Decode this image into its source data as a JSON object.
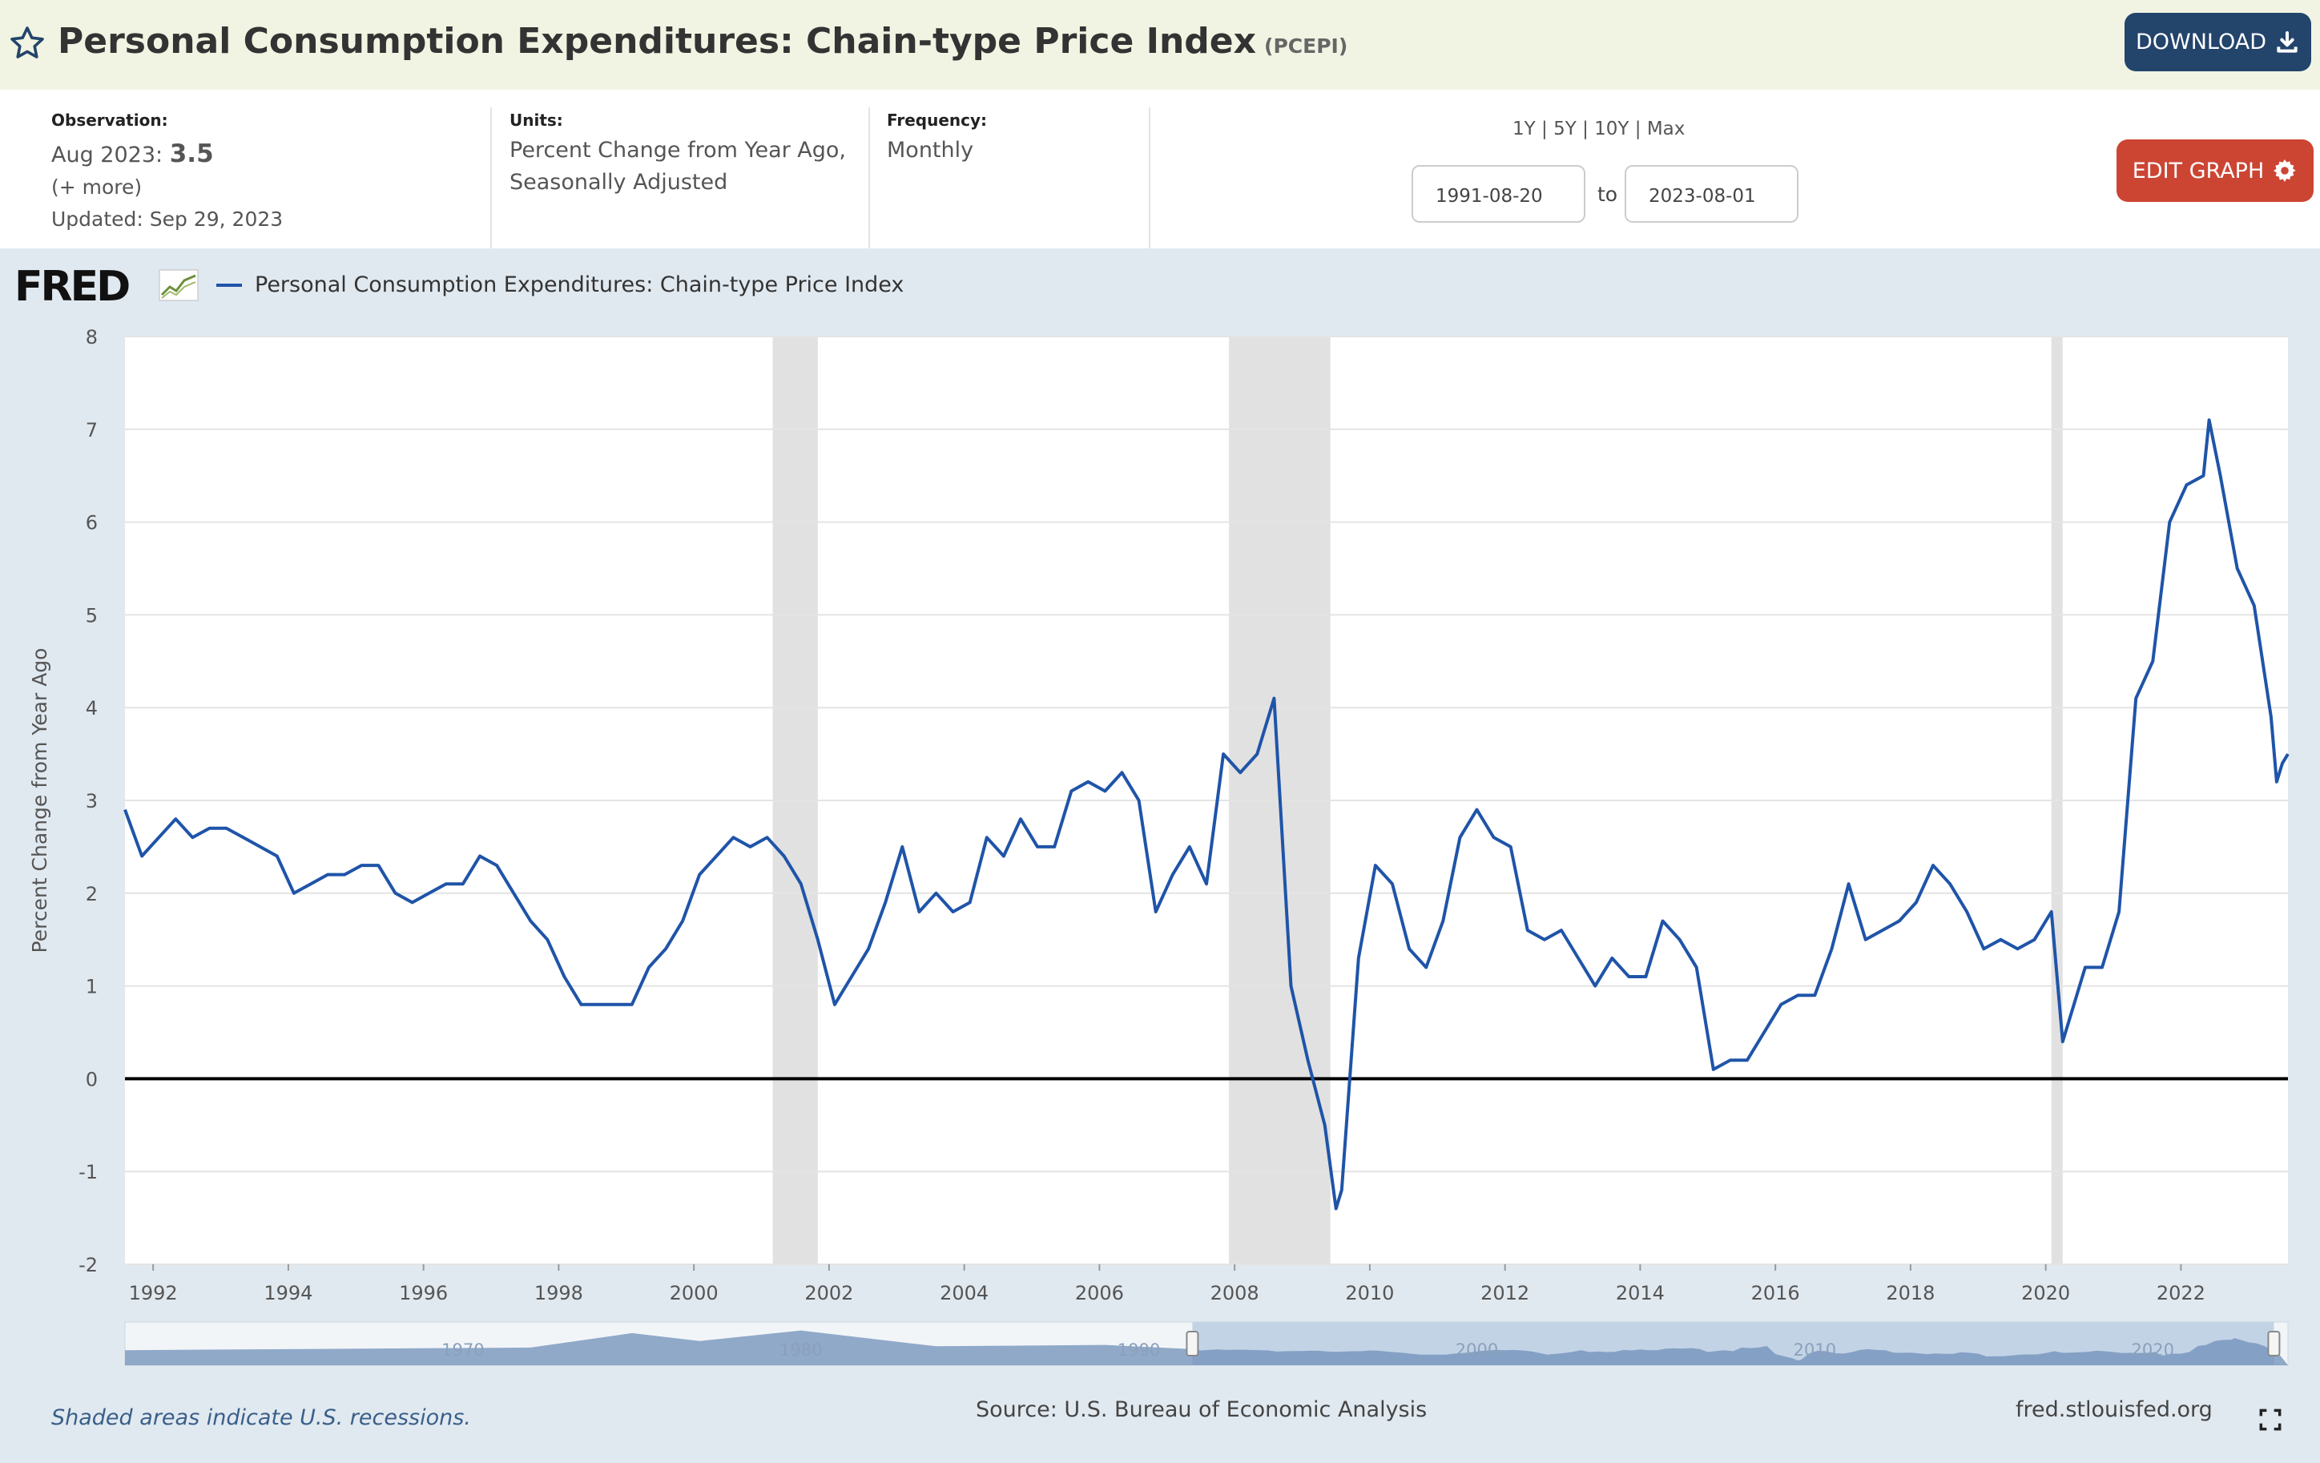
{
  "header": {
    "title": "Personal Consumption Expenditures: Chain-type Price Index",
    "series_id": "(PCEPI)",
    "download_label": "DOWNLOAD",
    "star_icon": "star-outline-icon"
  },
  "meta": {
    "observation_label": "Observation:",
    "observation_date": "Aug 2023:",
    "observation_value": "3.5",
    "more_link": "(+ more)",
    "updated": "Updated: Sep 29, 2023",
    "units_label": "Units:",
    "units_line1": "Percent Change from Year Ago,",
    "units_line2": "Seasonally Adjusted",
    "frequency_label": "Frequency:",
    "frequency_value": "Monthly"
  },
  "controls": {
    "range_1y": "1Y",
    "range_5y": "5Y",
    "range_10y": "10Y",
    "range_max": "Max",
    "separator": "|",
    "start_date": "1991-08-20",
    "to_label": "to",
    "end_date": "2023-08-01",
    "edit_label": "EDIT GRAPH"
  },
  "graph": {
    "logo_text": "FRED",
    "footer_note": "Shaded areas indicate U.S. recessions.",
    "source": "Source: U.S. Bureau of Economic Analysis",
    "site": "fred.stlouisfed.org"
  },
  "colors": {
    "line": "#1f54a8",
    "recession": "#e1e1e1",
    "title_bg": "#f1f4e2",
    "graph_bg": "#e1e9f0",
    "download_btn": "#23446b",
    "edit_btn": "#cc4533"
  },
  "chart_data": {
    "type": "line",
    "title": "",
    "ylabel": "Percent Change from Year Ago",
    "xlabel": "",
    "ylim": [
      -2,
      8
    ],
    "xlim": [
      "1991-08",
      "2023-08"
    ],
    "yticks": [
      "-2",
      "-1",
      "0",
      "1",
      "2",
      "3",
      "4",
      "5",
      "6",
      "7",
      "8"
    ],
    "xticks": [
      "1992",
      "1994",
      "1996",
      "1998",
      "2000",
      "2002",
      "2004",
      "2006",
      "2008",
      "2010",
      "2012",
      "2014",
      "2016",
      "2018",
      "2020",
      "2022"
    ],
    "grid": true,
    "zero_line": true,
    "legend": "top-left",
    "recessions": [
      [
        "2001-03",
        "2001-11"
      ],
      [
        "2007-12",
        "2009-06"
      ],
      [
        "2020-02",
        "2020-04"
      ]
    ],
    "navigator_labels": [
      "1970",
      "1980",
      "1990",
      "2000",
      "2010",
      "2020"
    ],
    "series": [
      {
        "name": "Personal Consumption Expenditures: Chain-type Price Index",
        "points": [
          [
            "1991-08",
            2.9
          ],
          [
            "1991-11",
            2.4
          ],
          [
            "1992-02",
            2.6
          ],
          [
            "1992-05",
            2.8
          ],
          [
            "1992-08",
            2.6
          ],
          [
            "1992-11",
            2.7
          ],
          [
            "1993-02",
            2.7
          ],
          [
            "1993-05",
            2.6
          ],
          [
            "1993-08",
            2.5
          ],
          [
            "1993-11",
            2.4
          ],
          [
            "1994-02",
            2.0
          ],
          [
            "1994-05",
            2.1
          ],
          [
            "1994-08",
            2.2
          ],
          [
            "1994-11",
            2.2
          ],
          [
            "1995-02",
            2.3
          ],
          [
            "1995-05",
            2.3
          ],
          [
            "1995-08",
            2.0
          ],
          [
            "1995-11",
            1.9
          ],
          [
            "1996-02",
            2.0
          ],
          [
            "1996-05",
            2.1
          ],
          [
            "1996-08",
            2.1
          ],
          [
            "1996-11",
            2.4
          ],
          [
            "1997-02",
            2.3
          ],
          [
            "1997-05",
            2.0
          ],
          [
            "1997-08",
            1.7
          ],
          [
            "1997-11",
            1.5
          ],
          [
            "1998-02",
            1.1
          ],
          [
            "1998-05",
            0.8
          ],
          [
            "1998-08",
            0.8
          ],
          [
            "1998-11",
            0.8
          ],
          [
            "1999-02",
            0.8
          ],
          [
            "1999-05",
            1.2
          ],
          [
            "1999-08",
            1.4
          ],
          [
            "1999-11",
            1.7
          ],
          [
            "2000-02",
            2.2
          ],
          [
            "2000-05",
            2.4
          ],
          [
            "2000-08",
            2.6
          ],
          [
            "2000-11",
            2.5
          ],
          [
            "2001-02",
            2.6
          ],
          [
            "2001-05",
            2.4
          ],
          [
            "2001-08",
            2.1
          ],
          [
            "2001-11",
            1.5
          ],
          [
            "2002-02",
            0.8
          ],
          [
            "2002-05",
            1.1
          ],
          [
            "2002-08",
            1.4
          ],
          [
            "2002-11",
            1.9
          ],
          [
            "2003-02",
            2.5
          ],
          [
            "2003-05",
            1.8
          ],
          [
            "2003-08",
            2.0
          ],
          [
            "2003-11",
            1.8
          ],
          [
            "2004-02",
            1.9
          ],
          [
            "2004-05",
            2.6
          ],
          [
            "2004-08",
            2.4
          ],
          [
            "2004-11",
            2.8
          ],
          [
            "2005-02",
            2.5
          ],
          [
            "2005-05",
            2.5
          ],
          [
            "2005-08",
            3.1
          ],
          [
            "2005-11",
            3.2
          ],
          [
            "2006-02",
            3.1
          ],
          [
            "2006-05",
            3.3
          ],
          [
            "2006-08",
            3.0
          ],
          [
            "2006-11",
            1.8
          ],
          [
            "2007-02",
            2.2
          ],
          [
            "2007-05",
            2.5
          ],
          [
            "2007-08",
            2.1
          ],
          [
            "2007-11",
            3.5
          ],
          [
            "2008-02",
            3.3
          ],
          [
            "2008-05",
            3.5
          ],
          [
            "2008-08",
            4.1
          ],
          [
            "2008-11",
            1.0
          ],
          [
            "2009-02",
            0.2
          ],
          [
            "2009-05",
            -0.5
          ],
          [
            "2009-07",
            -1.4
          ],
          [
            "2009-08",
            -1.2
          ],
          [
            "2009-11",
            1.3
          ],
          [
            "2010-02",
            2.3
          ],
          [
            "2010-05",
            2.1
          ],
          [
            "2010-08",
            1.4
          ],
          [
            "2010-11",
            1.2
          ],
          [
            "2011-02",
            1.7
          ],
          [
            "2011-05",
            2.6
          ],
          [
            "2011-08",
            2.9
          ],
          [
            "2011-11",
            2.6
          ],
          [
            "2012-02",
            2.5
          ],
          [
            "2012-05",
            1.6
          ],
          [
            "2012-08",
            1.5
          ],
          [
            "2012-11",
            1.6
          ],
          [
            "2013-02",
            1.3
          ],
          [
            "2013-05",
            1.0
          ],
          [
            "2013-08",
            1.3
          ],
          [
            "2013-11",
            1.1
          ],
          [
            "2014-02",
            1.1
          ],
          [
            "2014-05",
            1.7
          ],
          [
            "2014-08",
            1.5
          ],
          [
            "2014-11",
            1.2
          ],
          [
            "2015-02",
            0.1
          ],
          [
            "2015-05",
            0.2
          ],
          [
            "2015-08",
            0.2
          ],
          [
            "2015-11",
            0.5
          ],
          [
            "2016-02",
            0.8
          ],
          [
            "2016-05",
            0.9
          ],
          [
            "2016-08",
            0.9
          ],
          [
            "2016-11",
            1.4
          ],
          [
            "2017-02",
            2.1
          ],
          [
            "2017-05",
            1.5
          ],
          [
            "2017-08",
            1.6
          ],
          [
            "2017-11",
            1.7
          ],
          [
            "2018-02",
            1.9
          ],
          [
            "2018-05",
            2.3
          ],
          [
            "2018-08",
            2.1
          ],
          [
            "2018-11",
            1.8
          ],
          [
            "2019-02",
            1.4
          ],
          [
            "2019-05",
            1.5
          ],
          [
            "2019-08",
            1.4
          ],
          [
            "2019-11",
            1.5
          ],
          [
            "2020-02",
            1.8
          ],
          [
            "2020-04",
            0.4
          ],
          [
            "2020-08",
            1.2
          ],
          [
            "2020-11",
            1.2
          ],
          [
            "2021-02",
            1.8
          ],
          [
            "2021-05",
            4.1
          ],
          [
            "2021-08",
            4.5
          ],
          [
            "2021-11",
            6.0
          ],
          [
            "2022-02",
            6.4
          ],
          [
            "2022-05",
            6.5
          ],
          [
            "2022-06",
            7.1
          ],
          [
            "2022-08",
            6.5
          ],
          [
            "2022-11",
            5.5
          ],
          [
            "2023-02",
            5.1
          ],
          [
            "2023-05",
            3.9
          ],
          [
            "2023-06",
            3.2
          ],
          [
            "2023-07",
            3.4
          ],
          [
            "2023-08",
            3.5
          ]
        ]
      }
    ]
  }
}
